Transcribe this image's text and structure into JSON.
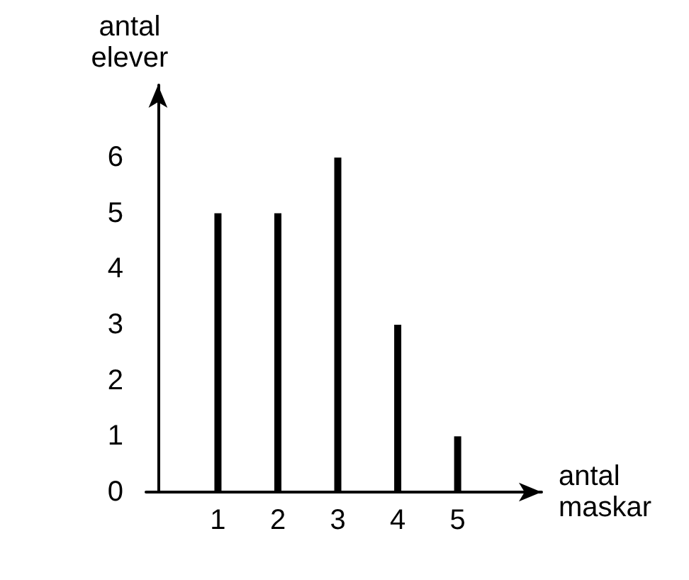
{
  "chart_data": {
    "type": "bar",
    "xlabel": "antal\nmaskar",
    "ylabel": "antal\nelever",
    "x": [
      1,
      2,
      3,
      4,
      5
    ],
    "values": [
      5,
      5,
      6,
      3,
      1
    ],
    "color": "#000000",
    "xlim": [
      -0.2,
      6.4
    ],
    "xticks": [
      1,
      2,
      3,
      4,
      5
    ],
    "ylim": [
      0,
      7.3
    ],
    "yticks": [
      0,
      1,
      2,
      3,
      4,
      5,
      6
    ],
    "grid": false
  }
}
